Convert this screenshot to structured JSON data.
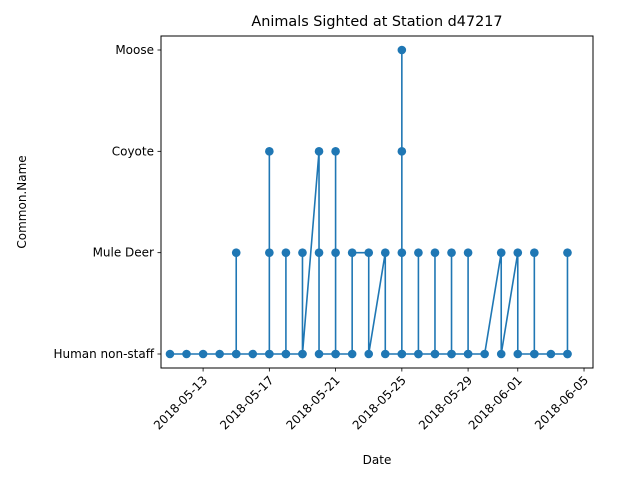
{
  "chart_data": {
    "type": "line",
    "title": "Animals Sighted at Station d47217",
    "xlabel": "Date",
    "ylabel": "Common.Name",
    "categories_y": [
      "Human non-staff",
      "Mule Deer",
      "Coyote",
      "Moose"
    ],
    "x_ticks": [
      "2018-05-13",
      "2018-05-17",
      "2018-05-21",
      "2018-05-25",
      "2018-05-29",
      "2018-06-01",
      "2018-06-05"
    ],
    "xlim": [
      "2018-05-10 11:00",
      "2018-06-05 13:00"
    ],
    "grid": false,
    "legend": "none",
    "series": [
      {
        "color": "#1f77b4",
        "marker": "circle",
        "points": [
          [
            "2018-05-11",
            "Human non-staff"
          ],
          [
            "2018-05-12",
            "Human non-staff"
          ],
          [
            "2018-05-13",
            "Human non-staff"
          ],
          [
            "2018-05-14",
            "Human non-staff"
          ],
          [
            "2018-05-15",
            "Human non-staff"
          ],
          [
            "2018-05-15",
            "Mule Deer"
          ],
          [
            "2018-05-15",
            "Human non-staff"
          ],
          [
            "2018-05-16",
            "Human non-staff"
          ],
          [
            "2018-05-17",
            "Human non-staff"
          ],
          [
            "2018-05-17",
            "Coyote"
          ],
          [
            "2018-05-17",
            "Mule Deer"
          ],
          [
            "2018-05-17",
            "Human non-staff"
          ],
          [
            "2018-05-18",
            "Human non-staff"
          ],
          [
            "2018-05-18",
            "Mule Deer"
          ],
          [
            "2018-05-18",
            "Human non-staff"
          ],
          [
            "2018-05-19",
            "Human non-staff"
          ],
          [
            "2018-05-19",
            "Mule Deer"
          ],
          [
            "2018-05-19",
            "Human non-staff"
          ],
          [
            "2018-05-20",
            "Coyote"
          ],
          [
            "2018-05-20",
            "Mule Deer"
          ],
          [
            "2018-05-20",
            "Human non-staff"
          ],
          [
            "2018-05-21",
            "Human non-staff"
          ],
          [
            "2018-05-21",
            "Coyote"
          ],
          [
            "2018-05-21",
            "Mule Deer"
          ],
          [
            "2018-05-21",
            "Human non-staff"
          ],
          [
            "2018-05-22",
            "Human non-staff"
          ],
          [
            "2018-05-22",
            "Mule Deer"
          ],
          [
            "2018-05-23",
            "Mule Deer"
          ],
          [
            "2018-05-23",
            "Human non-staff"
          ],
          [
            "2018-05-24",
            "Mule Deer"
          ],
          [
            "2018-05-24",
            "Human non-staff"
          ],
          [
            "2018-05-25",
            "Human non-staff"
          ],
          [
            "2018-05-25",
            "Moose"
          ],
          [
            "2018-05-25",
            "Coyote"
          ],
          [
            "2018-05-25",
            "Mule Deer"
          ],
          [
            "2018-05-25",
            "Human non-staff"
          ],
          [
            "2018-05-26",
            "Human non-staff"
          ],
          [
            "2018-05-26",
            "Mule Deer"
          ],
          [
            "2018-05-26",
            "Human non-staff"
          ],
          [
            "2018-05-27",
            "Human non-staff"
          ],
          [
            "2018-05-27",
            "Mule Deer"
          ],
          [
            "2018-05-27",
            "Human non-staff"
          ],
          [
            "2018-05-28",
            "Human non-staff"
          ],
          [
            "2018-05-28",
            "Mule Deer"
          ],
          [
            "2018-05-28",
            "Human non-staff"
          ],
          [
            "2018-05-29",
            "Human non-staff"
          ],
          [
            "2018-05-29",
            "Mule Deer"
          ],
          [
            "2018-05-29",
            "Human non-staff"
          ],
          [
            "2018-05-30",
            "Human non-staff"
          ],
          [
            "2018-05-31",
            "Mule Deer"
          ],
          [
            "2018-05-31",
            "Human non-staff"
          ],
          [
            "2018-06-01",
            "Mule Deer"
          ],
          [
            "2018-06-01",
            "Human non-staff"
          ],
          [
            "2018-06-02",
            "Human non-staff"
          ],
          [
            "2018-06-02",
            "Mule Deer"
          ],
          [
            "2018-06-02",
            "Human non-staff"
          ],
          [
            "2018-06-03",
            "Human non-staff"
          ],
          [
            "2018-06-04",
            "Human non-staff"
          ],
          [
            "2018-06-04",
            "Mule Deer"
          ],
          [
            "2018-06-04",
            "Human non-staff"
          ]
        ]
      }
    ]
  }
}
